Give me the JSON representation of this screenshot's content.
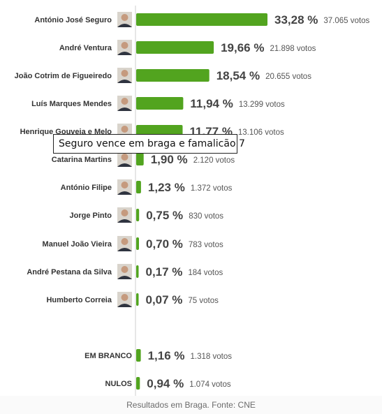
{
  "chart_data": {
    "type": "bar",
    "orientation": "horizontal",
    "bar_color": "#52a41f",
    "rows": [
      {
        "name": "António José Seguro",
        "value": 33.28,
        "percent_label": "33,28 %",
        "votes": "37.065 votos",
        "avatar": "candidate-photo"
      },
      {
        "name": "André Ventura",
        "value": 19.66,
        "percent_label": "19,66 %",
        "votes": "21.898 votos",
        "avatar": "candidate-photo"
      },
      {
        "name": "João Cotrim de Figueiredo",
        "value": 18.54,
        "percent_label": "18,54 %",
        "votes": "20.655 votos",
        "avatar": "candidate-photo"
      },
      {
        "name": "Luís Marques Mendes",
        "value": 11.94,
        "percent_label": "11,94 %",
        "votes": "13.299 votos",
        "avatar": "candidate-photo"
      },
      {
        "name": "Henrique Gouveia e Melo",
        "value": 11.77,
        "percent_label": "11,77 %",
        "votes": "13.106 votos",
        "avatar": "candidate-photo"
      },
      {
        "name": "Catarina Martins",
        "value": 1.9,
        "percent_label": "1,90 %",
        "votes": "2.120 votos",
        "avatar": "candidate-photo"
      },
      {
        "name": "António Filipe",
        "value": 1.23,
        "percent_label": "1,23 %",
        "votes": "1.372 votos",
        "avatar": "candidate-photo"
      },
      {
        "name": "Jorge Pinto",
        "value": 0.75,
        "percent_label": "0,75 %",
        "votes": "830 votos",
        "avatar": "candidate-photo"
      },
      {
        "name": "Manuel João Vieira",
        "value": 0.7,
        "percent_label": "0,70 %",
        "votes": "783 votos",
        "avatar": "candidate-photo"
      },
      {
        "name": "André Pestana da Silva",
        "value": 0.17,
        "percent_label": "0,17 %",
        "votes": "184 votos",
        "avatar": "candidate-photo"
      },
      {
        "name": "Humberto Correia",
        "value": 0.07,
        "percent_label": "0,07 %",
        "votes": "75 votos",
        "avatar": "candidate-photo"
      },
      {
        "name": "EM BRANCO",
        "value": 1.16,
        "percent_label": "1,16 %",
        "votes": "1.318 votos",
        "avatar": ""
      },
      {
        "name": "NULOS",
        "value": 0.94,
        "percent_label": "0,94 %",
        "votes": "1.074 votos",
        "avatar": ""
      }
    ]
  },
  "tooltip": {
    "text": "Seguro vence em braga e famalicão 7"
  },
  "caption": "Resultados em Braga. Fonte: CNE"
}
